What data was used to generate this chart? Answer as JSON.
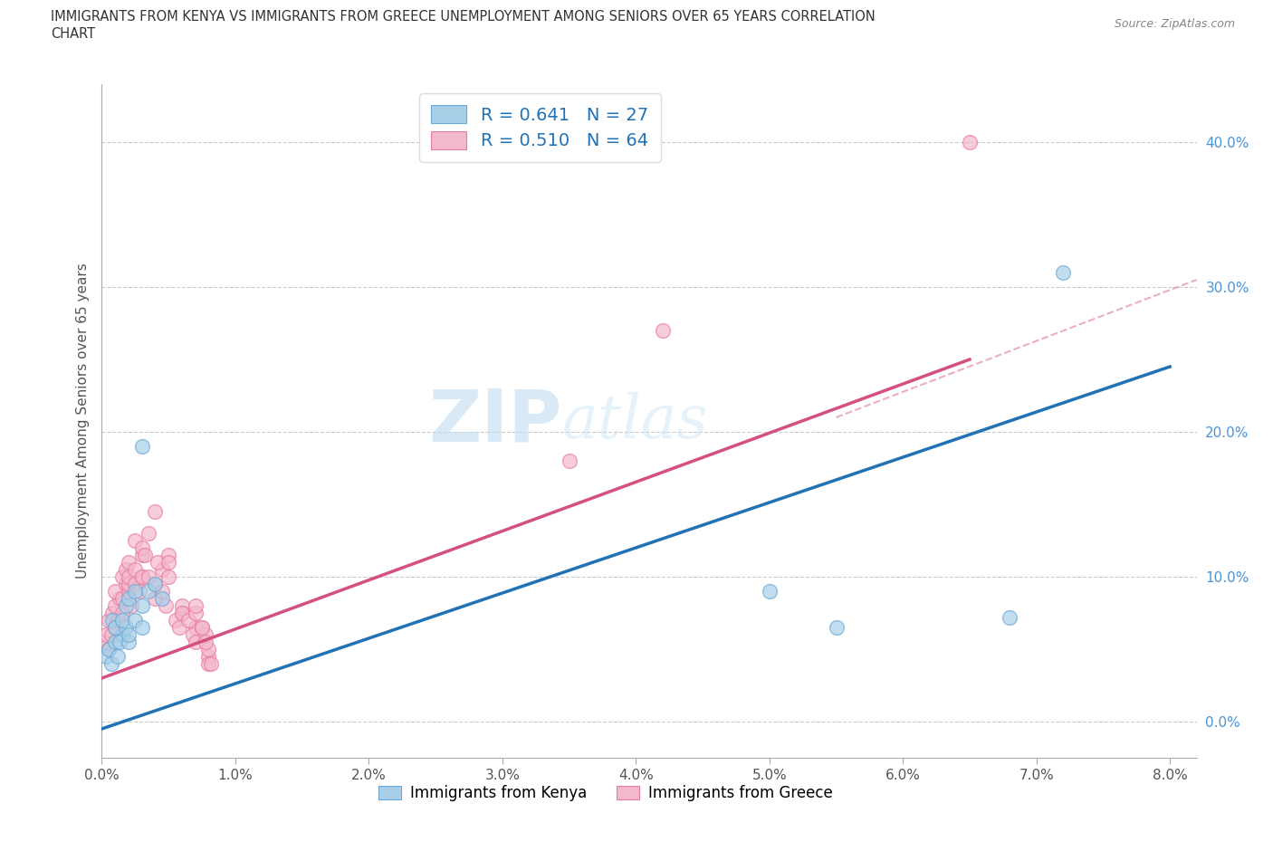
{
  "title_line1": "IMMIGRANTS FROM KENYA VS IMMIGRANTS FROM GREECE UNEMPLOYMENT AMONG SENIORS OVER 65 YEARS CORRELATION",
  "title_line2": "CHART",
  "source": "Source: ZipAtlas.com",
  "ylabel": "Unemployment Among Seniors over 65 years",
  "xlim": [
    0.0,
    0.082
  ],
  "ylim": [
    -0.025,
    0.44
  ],
  "xticks": [
    0.0,
    0.01,
    0.02,
    0.03,
    0.04,
    0.05,
    0.06,
    0.07,
    0.08
  ],
  "xticklabels": [
    "0.0%",
    "1.0%",
    "2.0%",
    "3.0%",
    "4.0%",
    "5.0%",
    "6.0%",
    "7.0%",
    "8.0%"
  ],
  "yticks": [
    0.0,
    0.1,
    0.2,
    0.3,
    0.4
  ],
  "yticklabels": [
    "0.0%",
    "10.0%",
    "20.0%",
    "30.0%",
    "40.0%"
  ],
  "kenya_color": "#a8cfe8",
  "greece_color": "#f4b8cc",
  "kenya_edge_color": "#6aaad4",
  "greece_edge_color": "#e87ca0",
  "kenya_line_color": "#2171b5",
  "greece_line_color": "#d44f82",
  "dash_color": "#e8a0b8",
  "kenya_R": "0.641",
  "kenya_N": "27",
  "greece_R": "0.510",
  "greece_N": "64",
  "watermark": "ZIPAtlas",
  "legend_color": "#2171b5",
  "kenya_label": "Immigrants from Kenya",
  "greece_label": "Immigrants from Greece",
  "ytick_color": "#4d94d4",
  "kenya_line_x0": 0.0,
  "kenya_line_y0": -0.005,
  "kenya_line_x1": 0.08,
  "kenya_line_y1": 0.245,
  "greece_line_x0": 0.0,
  "greece_line_y0": 0.03,
  "greece_line_x1": 0.065,
  "greece_line_y1": 0.25,
  "dash_line_x0": 0.055,
  "dash_line_y0": 0.21,
  "dash_line_x1": 0.082,
  "dash_line_y1": 0.305,
  "kenya_x": [
    0.0003,
    0.0005,
    0.0007,
    0.001,
    0.0012,
    0.0015,
    0.0008,
    0.001,
    0.0013,
    0.0018,
    0.002,
    0.0015,
    0.002,
    0.0025,
    0.003,
    0.0018,
    0.002,
    0.0025,
    0.003,
    0.0035,
    0.004,
    0.003,
    0.0045,
    0.05,
    0.055,
    0.068,
    0.072
  ],
  "kenya_y": [
    0.045,
    0.05,
    0.04,
    0.055,
    0.045,
    0.06,
    0.07,
    0.065,
    0.055,
    0.065,
    0.055,
    0.07,
    0.06,
    0.07,
    0.065,
    0.08,
    0.085,
    0.09,
    0.08,
    0.09,
    0.095,
    0.19,
    0.085,
    0.09,
    0.065,
    0.072,
    0.31
  ],
  "greece_x": [
    0.0002,
    0.0003,
    0.0005,
    0.0007,
    0.0005,
    0.001,
    0.0008,
    0.0012,
    0.001,
    0.0015,
    0.0013,
    0.001,
    0.0015,
    0.0018,
    0.002,
    0.0015,
    0.002,
    0.0018,
    0.002,
    0.0025,
    0.002,
    0.0022,
    0.003,
    0.0025,
    0.003,
    0.0028,
    0.0025,
    0.003,
    0.0035,
    0.003,
    0.0032,
    0.004,
    0.0035,
    0.004,
    0.0045,
    0.004,
    0.0042,
    0.005,
    0.0045,
    0.005,
    0.0048,
    0.005,
    0.006,
    0.0055,
    0.006,
    0.0058,
    0.006,
    0.007,
    0.0065,
    0.007,
    0.0068,
    0.007,
    0.0075,
    0.007,
    0.0078,
    0.008,
    0.0075,
    0.008,
    0.0078,
    0.008,
    0.0082,
    0.035,
    0.042,
    0.065
  ],
  "greece_y": [
    0.055,
    0.06,
    0.05,
    0.06,
    0.07,
    0.065,
    0.075,
    0.07,
    0.08,
    0.075,
    0.085,
    0.09,
    0.085,
    0.095,
    0.09,
    0.1,
    0.095,
    0.105,
    0.1,
    0.095,
    0.11,
    0.08,
    0.1,
    0.105,
    0.115,
    0.09,
    0.125,
    0.12,
    0.13,
    0.1,
    0.115,
    0.095,
    0.1,
    0.085,
    0.105,
    0.145,
    0.11,
    0.1,
    0.09,
    0.115,
    0.08,
    0.11,
    0.075,
    0.07,
    0.08,
    0.065,
    0.075,
    0.065,
    0.07,
    0.075,
    0.06,
    0.08,
    0.065,
    0.055,
    0.06,
    0.045,
    0.065,
    0.05,
    0.055,
    0.04,
    0.04,
    0.18,
    0.27,
    0.4
  ]
}
